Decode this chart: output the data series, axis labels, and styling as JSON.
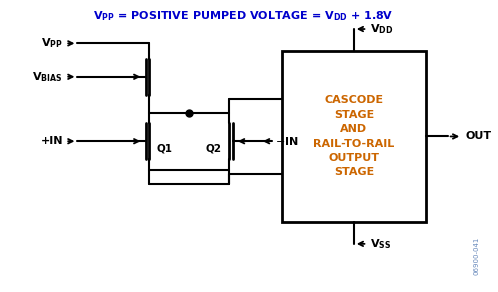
{
  "title": "$\\mathbf{V_{PP}}$ = POSITIVE PUMPED VOLTAGE = $\\mathbf{V_{DD}}$ + 1.8V",
  "title_color": "#0000CC",
  "box_text": "CASCODE\nSTAGE\nAND\nRAIL-TO-RAIL\nOUTPUT\nSTAGE",
  "box_text_color": "#CC6600",
  "fig_width": 4.98,
  "fig_height": 2.92,
  "watermark": "06900-041",
  "line_color": "black",
  "lw": 1.5
}
